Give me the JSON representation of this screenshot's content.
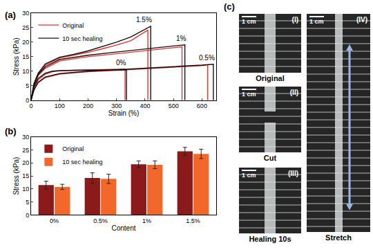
{
  "chart_data": [
    {
      "type": "line",
      "label": "(a)",
      "x_label": "Strain (%)",
      "y_label": "Stress (kPa)",
      "xlim": [
        0,
        650
      ],
      "xticks": [
        0,
        100,
        200,
        300,
        400,
        500,
        600
      ],
      "ylim": [
        0,
        30
      ],
      "yticks": [
        0,
        5,
        10,
        15,
        20,
        25,
        30
      ],
      "grid": false,
      "legend": "upper left",
      "series": [
        {
          "name": "Original",
          "color": "#e8312f",
          "curve": "0%",
          "x": [
            0,
            10,
            25,
            50,
            75,
            100,
            150,
            200,
            250,
            300,
            330,
            330
          ],
          "values": [
            0,
            4,
            7,
            9,
            9.8,
            10.1,
            10.3,
            10.4,
            10.5,
            10.6,
            10.7,
            0
          ]
        },
        {
          "name": "Original",
          "color": "#e8312f",
          "curve": "0.5%",
          "x": [
            0,
            10,
            25,
            50,
            100,
            200,
            300,
            400,
            500,
            600,
            620,
            620
          ],
          "values": [
            0,
            3.5,
            6,
            7.8,
            9,
            9.8,
            10.3,
            10.8,
            11.3,
            11.9,
            12.2,
            0
          ]
        },
        {
          "name": "Original",
          "color": "#e8312f",
          "curve": "1%",
          "x": [
            0,
            10,
            25,
            50,
            100,
            150,
            200,
            300,
            400,
            500,
            530,
            530
          ],
          "values": [
            0,
            5,
            8.5,
            11,
            13.5,
            14.3,
            15,
            16,
            17,
            18,
            18.4,
            0
          ]
        },
        {
          "name": "Original",
          "color": "#e8312f",
          "curve": "1.5%",
          "x": [
            0,
            10,
            25,
            50,
            100,
            150,
            200,
            250,
            300,
            350,
            400,
            410,
            410
          ],
          "values": [
            0,
            5.5,
            9,
            12,
            14.5,
            15.5,
            16.5,
            17.7,
            19,
            20.5,
            23.5,
            24.2,
            0
          ]
        },
        {
          "name": "10 sec healing",
          "color": "#111111",
          "curve": "0%",
          "x": [
            0,
            10,
            25,
            50,
            75,
            100,
            150,
            200,
            250,
            300,
            335,
            335
          ],
          "values": [
            0,
            4.5,
            7.5,
            9.3,
            10,
            10.2,
            10.3,
            10.4,
            10.5,
            10.5,
            10.5,
            0
          ]
        },
        {
          "name": "10 sec healing",
          "color": "#111111",
          "curve": "0.5%",
          "x": [
            0,
            10,
            25,
            50,
            100,
            200,
            300,
            400,
            500,
            600,
            640,
            640
          ],
          "values": [
            0,
            3.5,
            6.2,
            8,
            9.2,
            10,
            10.5,
            11,
            11.5,
            12.1,
            12.4,
            0
          ]
        },
        {
          "name": "10 sec healing",
          "color": "#111111",
          "curve": "1%",
          "x": [
            0,
            10,
            25,
            50,
            100,
            150,
            200,
            300,
            400,
            500,
            540,
            540
          ],
          "values": [
            0,
            5.2,
            8.8,
            11.5,
            14,
            14.8,
            15.5,
            16.6,
            17.6,
            18.6,
            19.1,
            0
          ]
        },
        {
          "name": "10 sec healing",
          "color": "#111111",
          "curve": "1.5%",
          "x": [
            0,
            10,
            25,
            50,
            100,
            150,
            200,
            250,
            300,
            350,
            400,
            420,
            420
          ],
          "values": [
            0,
            5.7,
            9.3,
            12.5,
            14.8,
            15.8,
            17,
            18.5,
            20,
            21.8,
            24.5,
            25.5,
            0
          ]
        }
      ]
    },
    {
      "type": "bar",
      "label": "(b)",
      "x_label": "Content",
      "y_label": "Stress (kPa)",
      "categories": [
        "0%",
        "0.5%",
        "1%",
        "1.5%"
      ],
      "ylim": [
        0,
        30
      ],
      "yticks": [
        0,
        5,
        10,
        15,
        20,
        25,
        30
      ],
      "grid": false,
      "legend": "upper left",
      "series": [
        {
          "name": "Original",
          "color": "#8b1a1a",
          "values": [
            11.5,
            14.2,
            19.5,
            24.5
          ],
          "errors": [
            1.5,
            2,
            1.3,
            1.5
          ]
        },
        {
          "name": "10 sec healing",
          "color": "#f2682a",
          "values": [
            10.8,
            13.9,
            19.3,
            23.5
          ],
          "errors": [
            1,
            1.8,
            1.5,
            1.8
          ]
        }
      ]
    }
  ],
  "photos": {
    "label": "(c)",
    "panels": [
      {
        "id": "(I)",
        "scale": "1 cm",
        "caption": "Original"
      },
      {
        "id": "(II)",
        "scale": "1 cm",
        "caption": "Cut"
      },
      {
        "id": "(III)",
        "scale": "1 cm",
        "caption": "Healing 10s"
      },
      {
        "id": "(IV)",
        "scale": "1 cm",
        "caption": "Stretch"
      }
    ]
  }
}
